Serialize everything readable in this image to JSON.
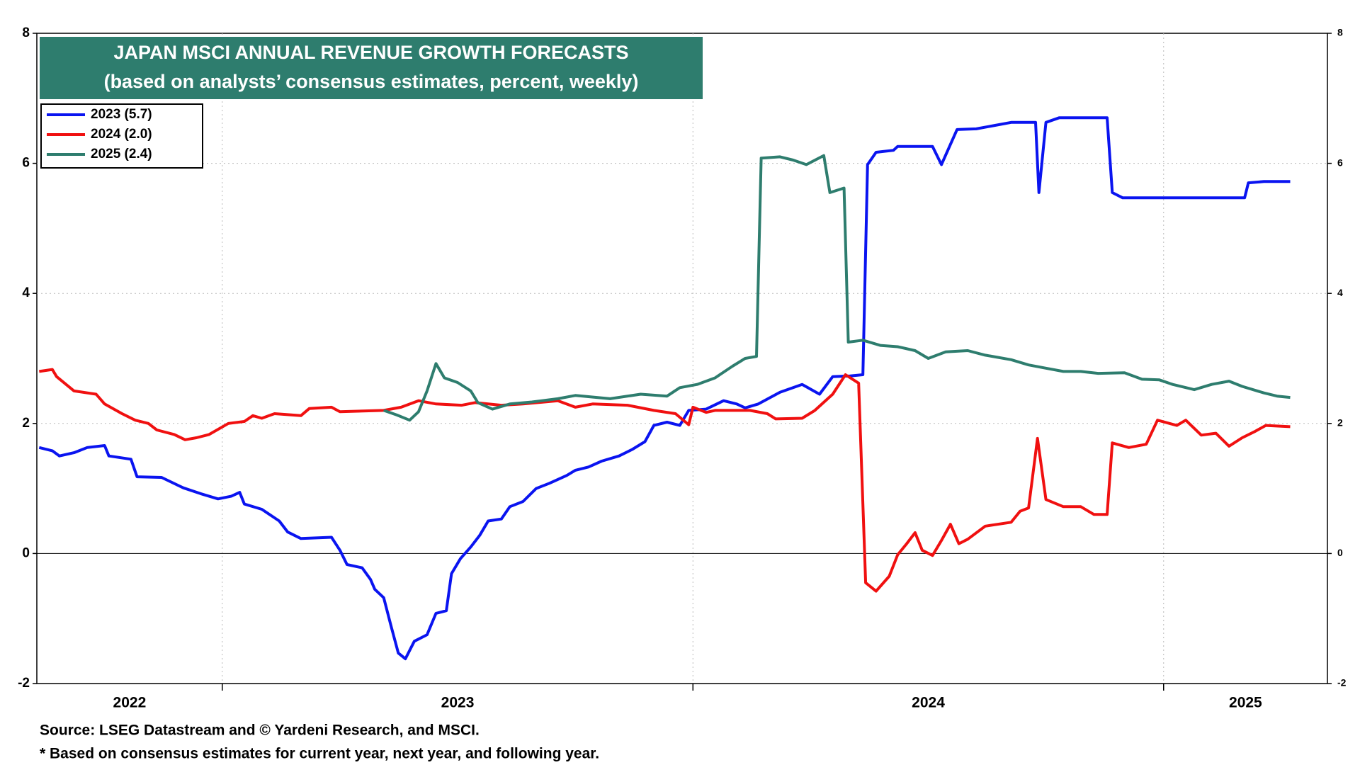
{
  "chart_data": {
    "type": "line",
    "title": "JAPAN MSCI ANNUAL REVENUE GROWTH FORECASTS",
    "subtitle": "(based on analysts’ consensus estimates, percent, weekly)",
    "source": "Source: LSEG Datastream and © Yardeni Research, and MSCI.",
    "note": "* Based on consensus estimates for current year, next year, and following year.",
    "legend": "upper left",
    "grid": true,
    "xlim": [
      2022.606,
      2025.348
    ],
    "xticks": [
      2023,
      2024,
      2025
    ],
    "x_labels": [
      2022,
      2023,
      2024,
      2025
    ],
    "ylim": [
      -2,
      8
    ],
    "yticks": [
      -2,
      0,
      2,
      4,
      6,
      8
    ],
    "y2lim": [
      -2,
      8
    ],
    "y2ticks": [
      -2,
      0,
      2,
      4,
      6,
      8
    ],
    "series": [
      {
        "name": "2023 (5.7)",
        "color": "#0a14f0",
        "x": [
          2022.611,
          2022.639,
          2022.654,
          2022.685,
          2022.713,
          2022.75,
          2022.759,
          2022.806,
          2022.819,
          2022.871,
          2022.917,
          2022.954,
          2022.991,
          2023.019,
          2023.037,
          2023.047,
          2023.084,
          2023.121,
          2023.139,
          2023.167,
          2023.232,
          2023.25,
          2023.265,
          2023.297,
          2023.315,
          2023.324,
          2023.343,
          2023.358,
          2023.374,
          2023.389,
          2023.408,
          2023.435,
          2023.454,
          2023.476,
          2023.487,
          2023.506,
          2023.528,
          2023.547,
          2023.565,
          2023.593,
          2023.611,
          2023.639,
          2023.667,
          2023.695,
          2023.732,
          2023.75,
          2023.778,
          2023.806,
          2023.843,
          2023.871,
          2023.898,
          2023.917,
          2023.945,
          2023.972,
          2023.991,
          2024.028,
          2024.065,
          2024.093,
          2024.111,
          2024.139,
          2024.185,
          2024.232,
          2024.269,
          2024.297,
          2024.334,
          2024.361,
          2024.371,
          2024.389,
          2024.426,
          2024.435,
          2024.509,
          2024.528,
          2024.561,
          2024.602,
          2024.676,
          2024.728,
          2024.735,
          2024.75,
          2024.778,
          2024.88,
          2024.891,
          2024.913,
          2025.121,
          2025.172,
          2025.18,
          2025.213,
          2025.269
        ],
        "values": [
          1.63,
          1.58,
          1.5,
          1.55,
          1.63,
          1.66,
          1.5,
          1.45,
          1.18,
          1.17,
          1.01,
          0.92,
          0.84,
          0.88,
          0.94,
          0.76,
          0.68,
          0.5,
          0.33,
          0.23,
          0.25,
          0.05,
          -0.17,
          -0.22,
          -0.4,
          -0.55,
          -0.68,
          -1.1,
          -1.53,
          -1.62,
          -1.35,
          -1.25,
          -0.92,
          -0.88,
          -0.31,
          -0.08,
          0.1,
          0.28,
          0.5,
          0.53,
          0.72,
          0.8,
          1.0,
          1.08,
          1.2,
          1.28,
          1.33,
          1.42,
          1.5,
          1.6,
          1.72,
          1.97,
          2.02,
          1.97,
          2.2,
          2.22,
          2.35,
          2.3,
          2.24,
          2.3,
          2.48,
          2.6,
          2.45,
          2.72,
          2.73,
          2.75,
          5.98,
          6.17,
          6.2,
          6.26,
          6.26,
          5.98,
          6.52,
          6.53,
          6.63,
          6.63,
          5.55,
          6.63,
          6.7,
          6.7,
          5.55,
          5.47,
          5.47,
          5.47,
          5.7,
          5.72,
          5.72
        ]
      },
      {
        "name": "2024 (2.0)",
        "color": "#f01010",
        "x": [
          2022.611,
          2022.639,
          2022.648,
          2022.685,
          2022.732,
          2022.75,
          2022.787,
          2022.815,
          2022.843,
          2022.861,
          2022.898,
          2022.921,
          2022.945,
          2022.972,
          2023.013,
          2023.047,
          2023.065,
          2023.084,
          2023.111,
          2023.167,
          2023.185,
          2023.232,
          2023.25,
          2023.343,
          2023.38,
          2023.417,
          2023.454,
          2023.509,
          2023.537,
          2023.593,
          2023.639,
          2023.713,
          2023.75,
          2023.787,
          2023.861,
          2023.917,
          2023.963,
          2023.991,
          2024.0,
          2024.028,
          2024.047,
          2024.121,
          2024.158,
          2024.176,
          2024.232,
          2024.259,
          2024.297,
          2024.324,
          2024.352,
          2024.367,
          2024.389,
          2024.417,
          2024.435,
          2024.454,
          2024.472,
          2024.487,
          2024.509,
          2024.528,
          2024.547,
          2024.565,
          2024.584,
          2024.621,
          2024.676,
          2024.695,
          2024.713,
          2024.732,
          2024.75,
          2024.787,
          2024.824,
          2024.852,
          2024.88,
          2024.891,
          2024.926,
          2024.963,
          2024.987,
          2025.028,
          2025.047,
          2025.08,
          2025.111,
          2025.139,
          2025.167,
          2025.195,
          2025.217,
          2025.269
        ],
        "values": [
          2.8,
          2.83,
          2.72,
          2.5,
          2.45,
          2.3,
          2.15,
          2.05,
          2.0,
          1.9,
          1.83,
          1.75,
          1.78,
          1.83,
          2.0,
          2.03,
          2.12,
          2.08,
          2.15,
          2.12,
          2.23,
          2.25,
          2.18,
          2.2,
          2.25,
          2.35,
          2.3,
          2.28,
          2.32,
          2.28,
          2.3,
          2.35,
          2.25,
          2.3,
          2.28,
          2.2,
          2.15,
          1.98,
          2.25,
          2.17,
          2.2,
          2.2,
          2.15,
          2.07,
          2.08,
          2.2,
          2.45,
          2.75,
          2.62,
          -0.45,
          -0.58,
          -0.35,
          -0.02,
          0.15,
          0.32,
          0.05,
          -0.03,
          0.2,
          0.45,
          0.15,
          0.22,
          0.42,
          0.48,
          0.65,
          0.7,
          1.77,
          0.83,
          0.72,
          0.72,
          0.6,
          0.6,
          1.7,
          1.63,
          1.68,
          2.05,
          1.97,
          2.05,
          1.82,
          1.85,
          1.65,
          1.78,
          1.88,
          1.97,
          1.95
        ]
      },
      {
        "name": "2025 (2.4)",
        "color": "#2e7d6e",
        "x": [
          2023.343,
          2023.371,
          2023.398,
          2023.417,
          2023.435,
          2023.454,
          2023.472,
          2023.5,
          2023.528,
          2023.543,
          2023.574,
          2023.611,
          2023.658,
          2023.713,
          2023.75,
          2023.824,
          2023.889,
          2023.945,
          2023.972,
          2024.009,
          2024.047,
          2024.084,
          2024.111,
          2024.135,
          2024.145,
          2024.185,
          2024.213,
          2024.241,
          2024.278,
          2024.291,
          2024.321,
          2024.33,
          2024.361,
          2024.398,
          2024.435,
          2024.472,
          2024.5,
          2024.537,
          2024.584,
          2024.621,
          2024.676,
          2024.713,
          2024.75,
          2024.787,
          2024.824,
          2024.861,
          2024.917,
          2024.954,
          2024.991,
          2025.019,
          2025.065,
          2025.102,
          2025.139,
          2025.167,
          2025.213,
          2025.241,
          2025.269
        ],
        "values": [
          2.2,
          2.13,
          2.05,
          2.18,
          2.5,
          2.92,
          2.7,
          2.63,
          2.5,
          2.32,
          2.22,
          2.3,
          2.33,
          2.38,
          2.43,
          2.38,
          2.45,
          2.42,
          2.55,
          2.6,
          2.7,
          2.88,
          3.0,
          3.03,
          6.08,
          6.1,
          6.05,
          5.98,
          6.12,
          5.55,
          5.62,
          3.25,
          3.28,
          3.2,
          3.18,
          3.12,
          3.0,
          3.1,
          3.12,
          3.05,
          2.98,
          2.9,
          2.85,
          2.8,
          2.8,
          2.77,
          2.78,
          2.68,
          2.67,
          2.6,
          2.52,
          2.6,
          2.65,
          2.57,
          2.47,
          2.42,
          2.4
        ]
      }
    ]
  }
}
